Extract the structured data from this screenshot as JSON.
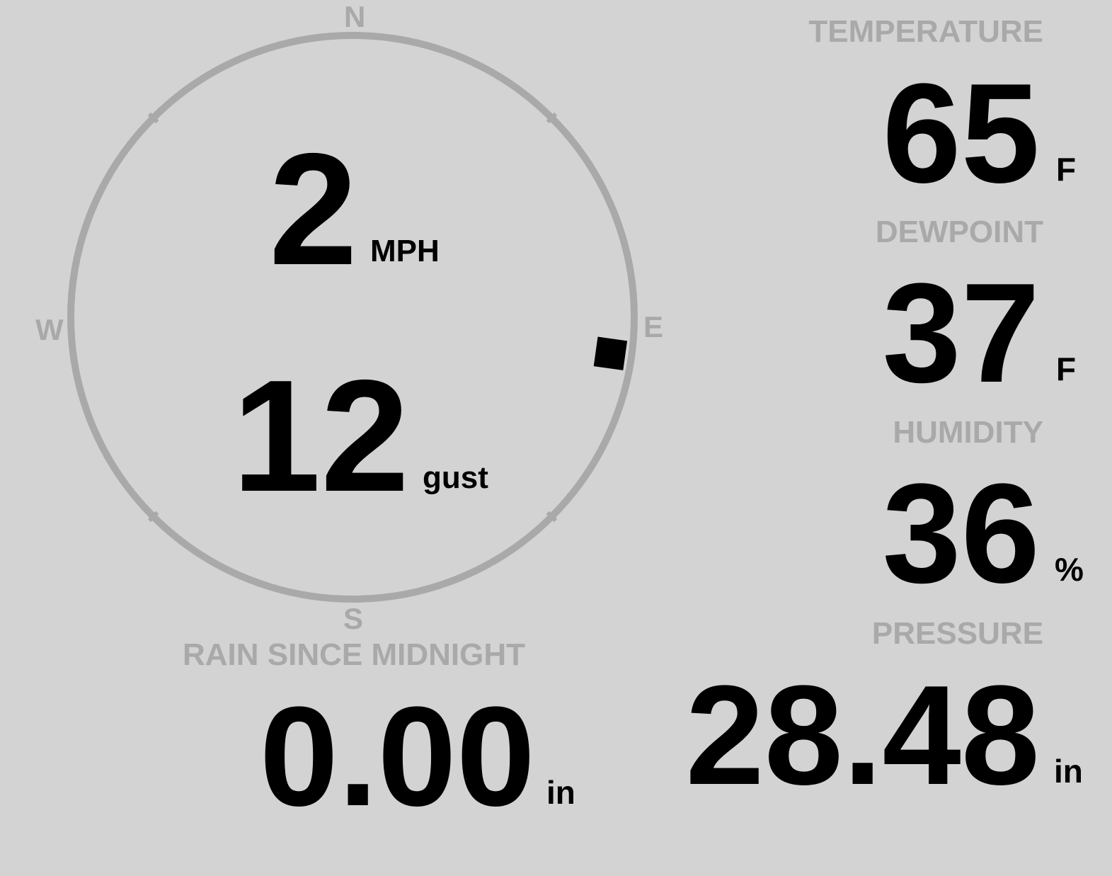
{
  "wind": {
    "speed": "2",
    "speed_unit": "MPH",
    "gust": "12",
    "gust_label": "gust",
    "direction_degrees": 98,
    "compass": {
      "n": "N",
      "e": "E",
      "s": "S",
      "w": "W"
    }
  },
  "temperature": {
    "label": "TEMPERATURE",
    "value": "65",
    "unit": "F"
  },
  "dewpoint": {
    "label": "DEWPOINT",
    "value": "37",
    "unit": "F"
  },
  "humidity": {
    "label": "HUMIDITY",
    "value": "36",
    "unit": "%"
  },
  "rain": {
    "label": "RAIN SINCE MIDNIGHT",
    "value": "0.00",
    "unit": "in"
  },
  "pressure": {
    "label": "PRESSURE",
    "value": "28.48",
    "unit": "in"
  },
  "colors": {
    "background": "#d3d3d3",
    "muted": "#a9a9a9",
    "value": "#000000"
  }
}
